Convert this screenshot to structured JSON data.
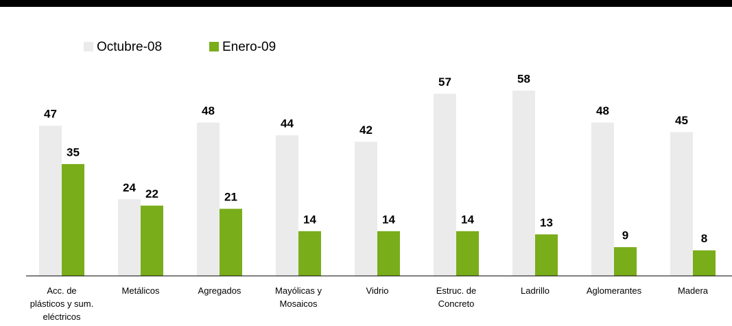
{
  "chart_data": {
    "type": "bar",
    "categories": [
      "Acc. de plásticos y sum. eléctricos",
      "Metálicos",
      "Agregados",
      "Mayólicas y Mosaicos",
      "Vidrio",
      "Estruc. de Concreto",
      "Ladrillo",
      "Aglomerantes",
      "Madera"
    ],
    "series": [
      {
        "name": "Octubre-08",
        "color": "#ebebeb",
        "values": [
          47,
          24,
          48,
          44,
          42,
          57,
          58,
          48,
          45
        ]
      },
      {
        "name": "Enero-09",
        "color": "#7aad1a",
        "values": [
          35,
          22,
          21,
          14,
          14,
          14,
          13,
          9,
          8
        ]
      }
    ],
    "legend": "top-left"
  }
}
